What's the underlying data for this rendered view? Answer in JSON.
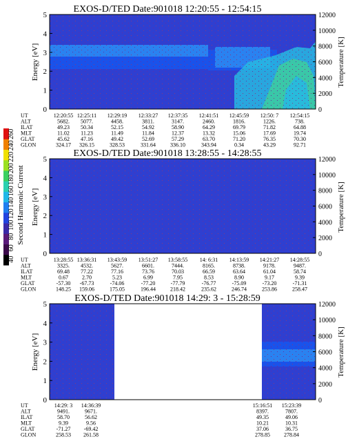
{
  "colors": {
    "background": "#2f3fd0",
    "band_dark": "#2233c4",
    "band_mid": "#1a52ea",
    "band_light": "#2a82f0",
    "band_cyan": "#28b8e0",
    "band_green": "#3fcf9a",
    "speckle": "#8a3a7a"
  },
  "colorbar": {
    "label": "Second Harmonic Current",
    "ticks": [
      "40",
      "60",
      "80",
      "100",
      "120",
      "140",
      "160",
      "180",
      "200",
      "220",
      "240",
      "260"
    ],
    "colors": [
      "#000000",
      "#3b0a4a",
      "#5a1a7a",
      "#3a2aa8",
      "#2244e0",
      "#1f7ef0",
      "#20b8e8",
      "#2ad0b0",
      "#3ad060",
      "#9ae020",
      "#f0e000",
      "#f08000",
      "#e01010"
    ]
  },
  "chart_data": [
    {
      "type": "heatmap",
      "title": "EXOS-D/TED   Date:901018   12:20:55 - 12:54:15",
      "ylabel": "Energy [eV]",
      "y2label": "Temperature [K]",
      "ylim": [
        0,
        5
      ],
      "y2lim": [
        0,
        12000
      ],
      "yticks": [
        "0",
        "1",
        "2",
        "3",
        "4",
        "5"
      ],
      "y2ticks": [
        "0",
        "2000",
        "4000",
        "6000",
        "8000",
        "10000",
        "12000"
      ],
      "table": {
        "row_labels": [
          "UT",
          "ALT",
          "ILAT",
          "MLT",
          "GLAT",
          "GLON"
        ],
        "columns": [
          [
            "12:20:55",
            "5682.",
            "49.23",
            "11.02",
            "45.62",
            "324.17"
          ],
          [
            "12:25:11",
            "5077.",
            "50.34",
            "11.23",
            "47.16",
            "326.15"
          ],
          [
            "12:29:19",
            "4458.",
            "52.15",
            "11.49",
            "49.42",
            "328.53"
          ],
          [
            "12:33:27",
            "3811.",
            "54.92",
            "11.84",
            "52.69",
            "331.64"
          ],
          [
            "12:37:35",
            "3147.",
            "58.90",
            "12.37",
            "57.29",
            "336.10"
          ],
          [
            "12:41:51",
            "2460.",
            "64.29",
            "13.32",
            "63.70",
            "343.94"
          ],
          [
            "12:45:59",
            "1816.",
            "69.79",
            "15.06",
            "71.20",
            "0.34"
          ],
          [
            "12:50: 7",
            "1226.",
            "71.82",
            "17.69",
            "76.35",
            "43.29"
          ],
          [
            "12:54:15",
            "738.",
            "64.88",
            "19.74",
            "70.30",
            "92.71"
          ]
        ]
      }
    },
    {
      "type": "heatmap",
      "title": "EXOS-D/TED   Date:901018   13:28:55 - 14:28:55",
      "ylabel": "Energy [eV]",
      "y2label": "Temperature [K]",
      "ylim": [
        0,
        5
      ],
      "y2lim": [
        0,
        12000
      ],
      "yticks": [
        "0",
        "1",
        "2",
        "3",
        "4",
        "5"
      ],
      "y2ticks": [
        "0",
        "2000",
        "4000",
        "6000",
        "8000",
        "10000",
        "12000"
      ],
      "table": {
        "row_labels": [
          "UT",
          "ALT",
          "ILAT",
          "MLT",
          "GLAT",
          "GLON"
        ],
        "columns": [
          [
            "13:28:55",
            "3325.",
            "69.48",
            "0.67",
            "-57.30",
            "148.25"
          ],
          [
            "13:36:31",
            "4532.",
            "77.22",
            "2.70",
            "-67.73",
            "159.06"
          ],
          [
            "13:43:59",
            "5627.",
            "77.16",
            "5.23",
            "-74.06",
            "175.05"
          ],
          [
            "13:51:27",
            "6601.",
            "73.76",
            "6.99",
            "-77.20",
            "196.44"
          ],
          [
            "13:58:55",
            "7444.",
            "70.03",
            "7.95",
            "-77.79",
            "218.42"
          ],
          [
            "14: 6:31",
            "8165.",
            "66.59",
            "8.53",
            "-76.77",
            "235.62"
          ],
          [
            "14:13:59",
            "8738.",
            "63.64",
            "8.90",
            "-75.09",
            "246.74"
          ],
          [
            "14:21:27",
            "9178.",
            "61.04",
            "9.17",
            "-73.20",
            "253.86"
          ],
          [
            "14:28:55",
            "9487.",
            "58.74",
            "9.39",
            "-71.31",
            "258.47"
          ]
        ]
      }
    },
    {
      "type": "heatmap",
      "title": "EXOS-D/TED   Date:901018   14:29: 3 - 15:28:59",
      "ylabel": "Energy [eV]",
      "y2label": "Temperature [K]",
      "ylim": [
        0,
        5
      ],
      "y2lim": [
        0,
        12000
      ],
      "yticks": [
        "0",
        "1",
        "2",
        "3",
        "4",
        "5"
      ],
      "y2ticks": [
        "0",
        "2000",
        "4000",
        "6000",
        "8000",
        "10000",
        "12000"
      ],
      "table": {
        "row_labels": [
          "UT",
          "ALT",
          "ILAT",
          "MLT",
          "GLAT",
          "GLON"
        ],
        "columns": [
          [
            "14:29: 3",
            "9491.",
            "58.70",
            "9.39",
            "-71.27",
            "258.53"
          ],
          [
            "14:36:39",
            "9671.",
            "56.62",
            "9.56",
            "-69.42",
            "261.58"
          ],
          [
            "15:16:51",
            "8397.",
            "49.35",
            "10.21",
            "37.06",
            "278.85"
          ],
          [
            "15:23:39",
            "7807.",
            "49.06",
            "10.31",
            "36.75",
            "278.84"
          ]
        ]
      }
    }
  ]
}
